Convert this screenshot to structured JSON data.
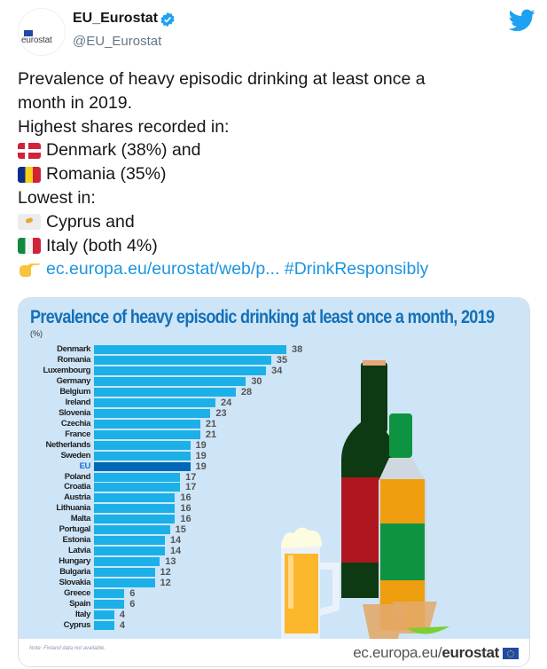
{
  "tweet": {
    "display_name": "EU_Eurostat",
    "handle": "@EU_Eurostat",
    "avatar_text": "eurostat",
    "verified": true,
    "lines": [
      {
        "text": "Prevalence of heavy episodic drinking at least once a",
        "emoji": null
      },
      {
        "text": "month in 2019.",
        "emoji": null
      },
      {
        "text": "Highest shares recorded in:",
        "emoji": null
      },
      {
        "text": "Denmark (38%) and",
        "emoji": "flag-denmark"
      },
      {
        "text": "Romania (35%)",
        "emoji": "flag-romania"
      },
      {
        "text": "Lowest in:",
        "emoji": null
      },
      {
        "text": "Cyprus and",
        "emoji": "flag-cyprus"
      },
      {
        "text": "Italy (both 4%)",
        "emoji": "flag-italy"
      }
    ],
    "link_text": "ec.europa.eu/eurostat/web/p...",
    "hashtag": "#DrinkResponsibly",
    "link_emoji": "backhand-index-pointing-right"
  },
  "infographic": {
    "footer_note": "Note: Finland data not available.",
    "footer_url_prefix": "ec.europa.eu/",
    "footer_url_brand": "eurostat"
  },
  "colors": {
    "bar": "#1cb0e8",
    "bar_eu": "#0068b8",
    "title": "#1570b8",
    "background": "#cde5f7",
    "link": "#1b95e0"
  },
  "chart_data": {
    "type": "bar",
    "orientation": "horizontal",
    "title": "Prevalence of heavy episodic drinking at least once a month, 2019",
    "unit": "(%)",
    "xlabel": "",
    "ylabel": "",
    "xlim": [
      0,
      38
    ],
    "grid": false,
    "highlight": "EU",
    "categories": [
      "Denmark",
      "Romania",
      "Luxembourg",
      "Germany",
      "Belgium",
      "Ireland",
      "Slovenia",
      "Czechia",
      "France",
      "Netherlands",
      "Sweden",
      "EU",
      "Poland",
      "Croatia",
      "Austria",
      "Lithuania",
      "Malta",
      "Portugal",
      "Estonia",
      "Latvia",
      "Hungary",
      "Bulgaria",
      "Slovakia",
      "Greece",
      "Spain",
      "Italy",
      "Cyprus"
    ],
    "values": [
      38,
      35,
      34,
      30,
      28,
      24,
      23,
      21,
      21,
      19,
      19,
      19,
      17,
      17,
      16,
      16,
      16,
      15,
      14,
      14,
      13,
      12,
      12,
      6,
      6,
      4,
      4
    ]
  }
}
